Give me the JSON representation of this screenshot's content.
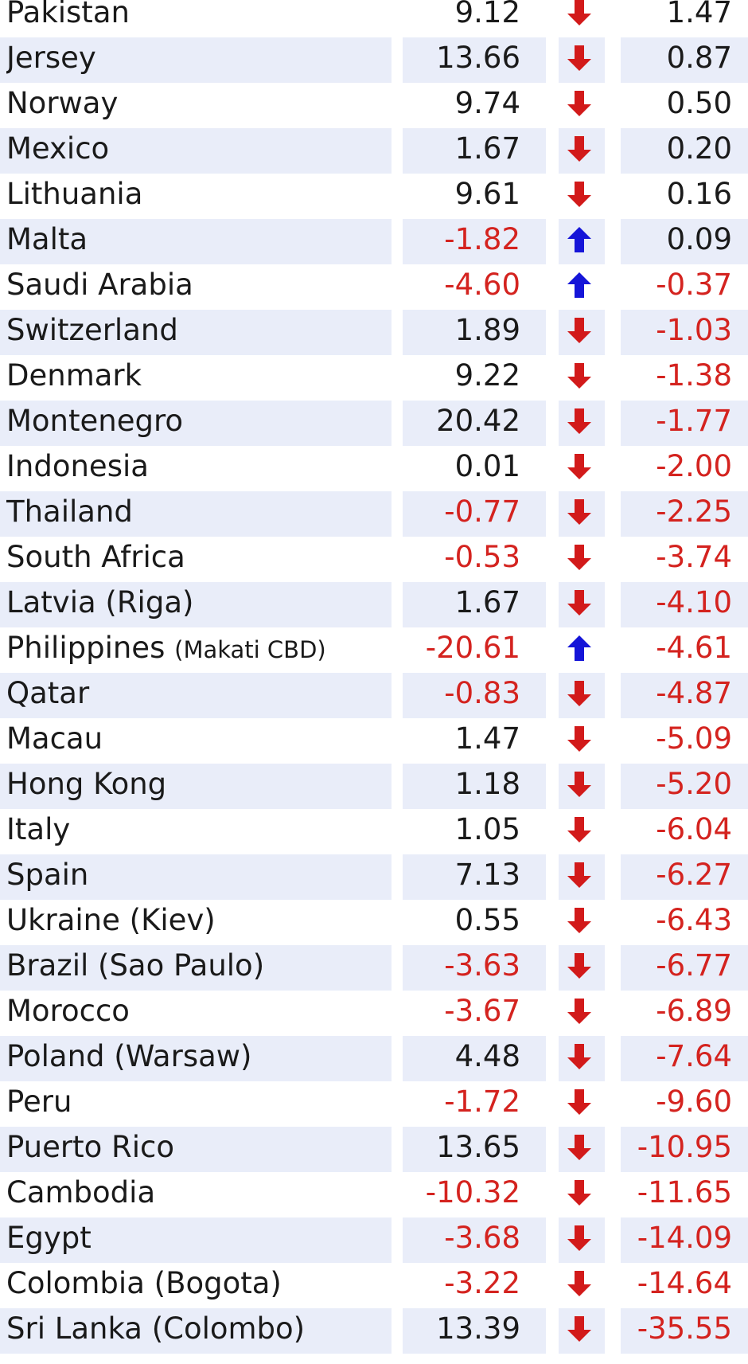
{
  "chart_data": {
    "type": "table",
    "colors": {
      "negative": "#d4231f",
      "up_arrow": "#1515d8",
      "down_arrow": "#d21a1a",
      "row_shade": "#e9edf9"
    },
    "rows": [
      {
        "name": "Pakistan",
        "v1": "9.12",
        "dir": "down",
        "v2": "1.47"
      },
      {
        "name": "Jersey",
        "v1": "13.66",
        "dir": "down",
        "v2": "0.87"
      },
      {
        "name": "Norway",
        "v1": "9.74",
        "dir": "down",
        "v2": "0.50"
      },
      {
        "name": "Mexico",
        "v1": "1.67",
        "dir": "down",
        "v2": "0.20"
      },
      {
        "name": "Lithuania",
        "v1": "9.61",
        "dir": "down",
        "v2": "0.16"
      },
      {
        "name": "Malta",
        "v1": "-1.82",
        "dir": "up",
        "v2": "0.09"
      },
      {
        "name": "Saudi Arabia",
        "v1": "-4.60",
        "dir": "up",
        "v2": "-0.37"
      },
      {
        "name": "Switzerland",
        "v1": "1.89",
        "dir": "down",
        "v2": "-1.03"
      },
      {
        "name": "Denmark",
        "v1": "9.22",
        "dir": "down",
        "v2": "-1.38"
      },
      {
        "name": "Montenegro",
        "v1": "20.42",
        "dir": "down",
        "v2": "-1.77"
      },
      {
        "name": "Indonesia",
        "v1": "0.01",
        "dir": "down",
        "v2": "-2.00"
      },
      {
        "name": "Thailand",
        "v1": "-0.77",
        "dir": "down",
        "v2": "-2.25"
      },
      {
        "name": "South Africa",
        "v1": "-0.53",
        "dir": "down",
        "v2": "-3.74"
      },
      {
        "name": "Latvia (Riga)",
        "v1": "1.67",
        "dir": "down",
        "v2": "-4.10"
      },
      {
        "name": "Philippines",
        "sub": "(Makati CBD)",
        "v1": "-20.61",
        "dir": "up",
        "v2": "-4.61"
      },
      {
        "name": "Qatar",
        "v1": "-0.83",
        "dir": "down",
        "v2": "-4.87"
      },
      {
        "name": "Macau",
        "v1": "1.47",
        "dir": "down",
        "v2": "-5.09"
      },
      {
        "name": "Hong Kong",
        "v1": "1.18",
        "dir": "down",
        "v2": "-5.20"
      },
      {
        "name": "Italy",
        "v1": "1.05",
        "dir": "down",
        "v2": "-6.04"
      },
      {
        "name": "Spain",
        "v1": "7.13",
        "dir": "down",
        "v2": "-6.27"
      },
      {
        "name": "Ukraine (Kiev)",
        "v1": "0.55",
        "dir": "down",
        "v2": "-6.43"
      },
      {
        "name": "Brazil (Sao Paulo)",
        "v1": "-3.63",
        "dir": "down",
        "v2": "-6.77"
      },
      {
        "name": "Morocco",
        "v1": "-3.67",
        "dir": "down",
        "v2": "-6.89"
      },
      {
        "name": "Poland (Warsaw)",
        "v1": "4.48",
        "dir": "down",
        "v2": "-7.64"
      },
      {
        "name": "Peru",
        "v1": "-1.72",
        "dir": "down",
        "v2": "-9.60"
      },
      {
        "name": "Puerto Rico",
        "v1": "13.65",
        "dir": "down",
        "v2": "-10.95"
      },
      {
        "name": "Cambodia",
        "v1": "-10.32",
        "dir": "down",
        "v2": "-11.65"
      },
      {
        "name": "Egypt",
        "v1": "-3.68",
        "dir": "down",
        "v2": "-14.09"
      },
      {
        "name": "Colombia (Bogota)",
        "v1": "-3.22",
        "dir": "down",
        "v2": "-14.64"
      },
      {
        "name": "Sri Lanka (Colombo)",
        "v1": "13.39",
        "dir": "down",
        "v2": "-35.55"
      }
    ]
  }
}
